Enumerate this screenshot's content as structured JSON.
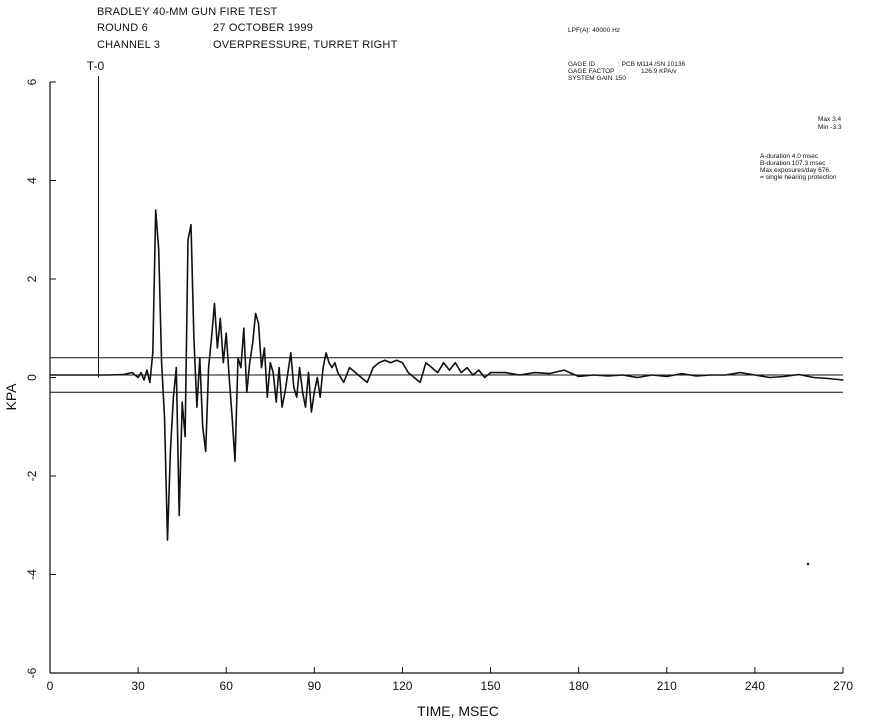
{
  "header": {
    "title": "BRADLEY 40-MM GUN FIRE TEST",
    "round_label": "ROUND 6",
    "date": "27 OCTOBER 1999",
    "channel_label": "CHANNEL 3",
    "channel_desc": "OVERPRESSURE, TURRET RIGHT"
  },
  "info": {
    "filter": "LPF(A): 40000 Hz",
    "gage_id_label": "GAGE ID",
    "gage_id_value": ": PCB   M114  /SN 10136",
    "gage_factor_label": "GAGE FACTOP",
    "gage_factor_value": "126.9 KPA/v",
    "system_gain_label": "SYSTEM GAIN",
    "system_gain_value": "150",
    "max_label": "Max  3.4",
    "min_label": "Min  -3.3",
    "a_duration": "A-duration  4.0 msec",
    "b_duration": "B-duration  107.3 msec",
    "max_exposures": "Max exposures/day  676.",
    "protection": "=  single hearing protection"
  },
  "chart_data": {
    "type": "line",
    "title": "BRADLEY 40-MM GUN FIRE TEST",
    "xlabel": "TIME, MSEC",
    "ylabel": "KPA",
    "xlim": [
      0,
      270
    ],
    "ylim": [
      -6,
      6
    ],
    "xticks": [
      0,
      30,
      60,
      90,
      120,
      150,
      180,
      210,
      240,
      270
    ],
    "yticks": [
      -6,
      -4,
      -2,
      0,
      2,
      4,
      6
    ],
    "grid": false,
    "marker_label": "T-0",
    "marker_x": 16.5,
    "reference_lines": [
      0.4,
      0.05,
      -0.3
    ],
    "series": [
      {
        "x": [
          0,
          5,
          10,
          15,
          20,
          25,
          28,
          30,
          31,
          32,
          33,
          34,
          35,
          36,
          37,
          38,
          39,
          40,
          41,
          42,
          43,
          44,
          45,
          46,
          47,
          48,
          49,
          50,
          51,
          52,
          53,
          54,
          55,
          56,
          57,
          58,
          59,
          60,
          61,
          62,
          63,
          64,
          65,
          66,
          67,
          68,
          69,
          70,
          71,
          72,
          73,
          74,
          75,
          76,
          77,
          78,
          79,
          80,
          81,
          82,
          83,
          84,
          85,
          86,
          87,
          88,
          89,
          90,
          91,
          92,
          93,
          94,
          95,
          96,
          97,
          98,
          100,
          102,
          104,
          106,
          108,
          110,
          112,
          114,
          116,
          118,
          120,
          122,
          124,
          126,
          128,
          130,
          132,
          134,
          136,
          138,
          140,
          142,
          144,
          146,
          148,
          150,
          155,
          160,
          165,
          170,
          175,
          180,
          185,
          190,
          195,
          200,
          205,
          210,
          215,
          220,
          225,
          230,
          235,
          240,
          245,
          250,
          255,
          260,
          265,
          270
        ],
        "y": [
          0.05,
          0.05,
          0.05,
          0.05,
          0.05,
          0.06,
          0.1,
          0.0,
          0.1,
          -0.05,
          0.15,
          -0.1,
          0.5,
          3.4,
          2.6,
          0.3,
          -0.8,
          -3.3,
          -1.5,
          -0.4,
          0.2,
          -2.8,
          -0.5,
          -1.2,
          2.8,
          3.1,
          0.8,
          -0.6,
          0.4,
          -1.0,
          -1.5,
          0.2,
          0.8,
          1.5,
          0.6,
          1.2,
          0.3,
          0.9,
          0.0,
          -0.8,
          -1.7,
          0.4,
          0.2,
          1.0,
          -0.3,
          0.3,
          0.7,
          1.3,
          1.1,
          0.2,
          0.6,
          -0.4,
          0.3,
          0.1,
          -0.5,
          0.2,
          -0.6,
          -0.3,
          0.1,
          0.5,
          -0.2,
          -0.4,
          0.2,
          -0.3,
          -0.6,
          0.1,
          -0.7,
          -0.3,
          0.0,
          -0.4,
          0.2,
          0.5,
          0.3,
          0.2,
          0.3,
          0.1,
          -0.1,
          0.2,
          0.1,
          0.0,
          -0.1,
          0.2,
          0.3,
          0.35,
          0.3,
          0.35,
          0.3,
          0.1,
          0.0,
          -0.1,
          0.3,
          0.2,
          0.1,
          0.3,
          0.15,
          0.3,
          0.1,
          0.2,
          0.05,
          0.15,
          0.0,
          0.1,
          0.1,
          0.05,
          0.1,
          0.08,
          0.15,
          0.02,
          0.05,
          0.03,
          0.05,
          0.0,
          0.05,
          0.02,
          0.08,
          0.03,
          0.05,
          0.05,
          0.1,
          0.05,
          0.0,
          0.02,
          0.06,
          0.0,
          -0.02,
          -0.05
        ]
      }
    ]
  }
}
